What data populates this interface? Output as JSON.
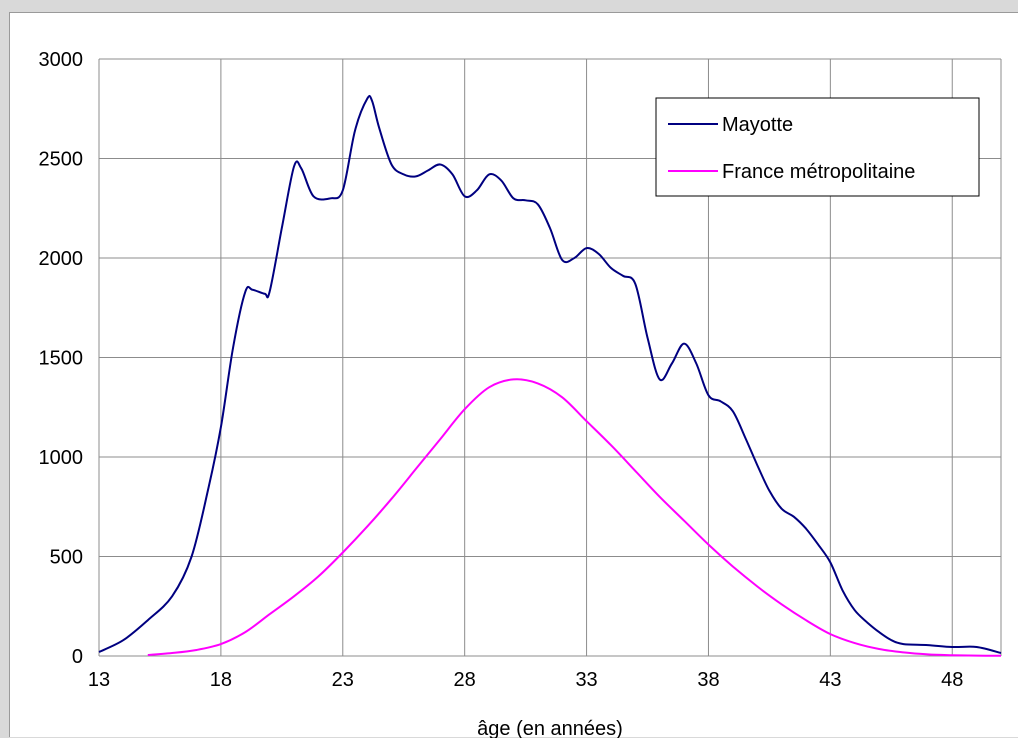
{
  "chart_data": {
    "type": "line",
    "xlabel": "âge (en années)",
    "ylabel": "",
    "xlim": [
      13,
      50
    ],
    "ylim": [
      0,
      3000
    ],
    "x_ticks": [
      13,
      18,
      23,
      28,
      33,
      38,
      43,
      48
    ],
    "y_ticks": [
      0,
      500,
      1000,
      1500,
      2000,
      2500,
      3000
    ],
    "grid": true,
    "legend_position": "top-right",
    "series": [
      {
        "name": "Mayotte",
        "color": "#000080",
        "x": [
          13,
          14,
          15,
          16,
          16.8,
          17.5,
          18,
          18.5,
          19,
          19.3,
          19.8,
          20,
          20.5,
          21,
          21.3,
          21.8,
          22.5,
          23,
          23.5,
          24,
          24.2,
          24.5,
          25,
          25.5,
          26,
          26.5,
          27,
          27.5,
          28,
          28.5,
          29,
          29.5,
          30,
          30.5,
          31,
          31.5,
          32,
          32.5,
          33,
          33.5,
          34,
          34.5,
          35,
          35.5,
          36,
          36.5,
          37,
          37.5,
          38,
          38.5,
          39,
          39.5,
          40,
          40.5,
          41,
          41.5,
          42,
          42.5,
          43,
          43.5,
          44,
          44.5,
          45,
          45.5,
          46,
          47,
          48,
          49,
          50
        ],
        "values": [
          20,
          80,
          180,
          300,
          500,
          850,
          1150,
          1550,
          1830,
          1840,
          1820,
          1830,
          2150,
          2460,
          2450,
          2310,
          2300,
          2340,
          2640,
          2800,
          2790,
          2650,
          2470,
          2420,
          2410,
          2440,
          2470,
          2420,
          2310,
          2340,
          2420,
          2390,
          2300,
          2290,
          2270,
          2150,
          1990,
          2000,
          2050,
          2020,
          1950,
          1910,
          1870,
          1600,
          1390,
          1470,
          1570,
          1470,
          1310,
          1280,
          1230,
          1100,
          960,
          830,
          740,
          700,
          640,
          560,
          470,
          330,
          230,
          170,
          120,
          80,
          60,
          55,
          45,
          45,
          15
        ]
      },
      {
        "name": "France métropolitaine",
        "color": "#ff00ff",
        "x": [
          15,
          16,
          17,
          18,
          19,
          20,
          21,
          22,
          23,
          24,
          25,
          26,
          27,
          28,
          29,
          30,
          31,
          32,
          33,
          34,
          35,
          36,
          37,
          38,
          39,
          40,
          41,
          42,
          43,
          44,
          45,
          46,
          47,
          48,
          49,
          50
        ],
        "values": [
          5,
          15,
          30,
          60,
          120,
          210,
          300,
          400,
          520,
          650,
          790,
          940,
          1090,
          1240,
          1350,
          1390,
          1370,
          1300,
          1180,
          1060,
          930,
          800,
          680,
          560,
          450,
          350,
          260,
          180,
          110,
          65,
          35,
          18,
          8,
          4,
          2,
          1
        ]
      }
    ]
  }
}
